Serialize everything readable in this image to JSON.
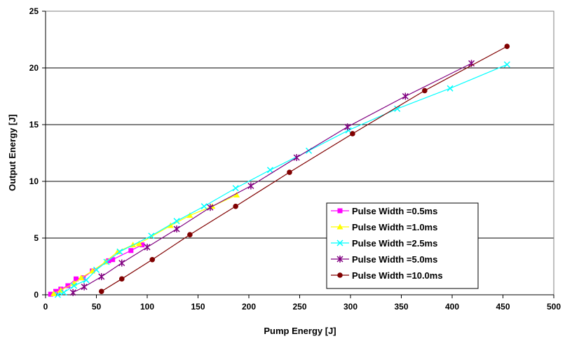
{
  "chart_data": {
    "type": "line",
    "title": "",
    "xlabel": "Pump Energy [J]",
    "ylabel": "Output Energy [J]",
    "xlim": [
      0,
      500
    ],
    "ylim": [
      0,
      25
    ],
    "xticks": [
      0,
      50,
      100,
      150,
      200,
      250,
      300,
      350,
      400,
      450,
      500
    ],
    "yticks": [
      0,
      5,
      10,
      15,
      20,
      25
    ],
    "grid": "horizontal",
    "legend_position": "bottom-right",
    "series": [
      {
        "name": "Pulse Width =0.5ms",
        "color": "#ff00ff",
        "marker": "square",
        "points": [
          [
            5,
            0.05
          ],
          [
            10,
            0.3
          ],
          [
            15,
            0.5
          ],
          [
            22,
            0.8
          ],
          [
            30,
            1.4
          ],
          [
            37,
            1.5
          ],
          [
            46,
            2.1
          ],
          [
            62,
            3.0
          ],
          [
            66,
            3.1
          ],
          [
            84,
            3.9
          ],
          [
            95,
            4.4
          ]
        ]
      },
      {
        "name": "Pulse Width =1.0ms",
        "color": "#ffff00",
        "marker": "triangle",
        "points": [
          [
            8,
            0.1
          ],
          [
            15,
            0.4
          ],
          [
            28,
            1.0
          ],
          [
            35,
            1.5
          ],
          [
            46,
            2.1
          ],
          [
            59,
            2.9
          ],
          [
            71,
            3.8
          ],
          [
            86,
            4.4
          ],
          [
            92,
            4.5
          ],
          [
            123,
            6.1
          ],
          [
            142,
            7.0
          ],
          [
            164,
            7.8
          ],
          [
            188,
            8.8
          ]
        ]
      },
      {
        "name": "Pulse Width =2.5ms",
        "color": "#00ffff",
        "marker": "x",
        "points": [
          [
            12,
            0.0
          ],
          [
            18,
            0.2
          ],
          [
            28,
            0.8
          ],
          [
            40,
            1.3
          ],
          [
            50,
            2.2
          ],
          [
            60,
            2.9
          ],
          [
            73,
            3.8
          ],
          [
            104,
            5.2
          ],
          [
            129,
            6.5
          ],
          [
            156,
            7.8
          ],
          [
            187,
            9.4
          ],
          [
            221,
            11.0
          ],
          [
            259,
            12.7
          ],
          [
            298,
            14.5
          ],
          [
            346,
            16.4
          ],
          [
            398,
            18.2
          ],
          [
            454,
            20.3
          ]
        ]
      },
      {
        "name": "Pulse Width =5.0ms",
        "color": "#800080",
        "marker": "star",
        "points": [
          [
            27,
            0.2
          ],
          [
            38,
            0.7
          ],
          [
            55,
            1.6
          ],
          [
            75,
            2.8
          ],
          [
            100,
            4.2
          ],
          [
            129,
            5.8
          ],
          [
            162,
            7.7
          ],
          [
            202,
            9.6
          ],
          [
            247,
            12.1
          ],
          [
            297,
            14.8
          ],
          [
            354,
            17.5
          ],
          [
            419,
            20.4
          ]
        ]
      },
      {
        "name": "Pulse Width =10.0ms",
        "color": "#800000",
        "marker": "circle",
        "points": [
          [
            55,
            0.3
          ],
          [
            75,
            1.4
          ],
          [
            105,
            3.1
          ],
          [
            142,
            5.3
          ],
          [
            187,
            7.8
          ],
          [
            240,
            10.8
          ],
          [
            302,
            14.2
          ],
          [
            373,
            18.0
          ],
          [
            454,
            21.9
          ]
        ]
      }
    ]
  }
}
